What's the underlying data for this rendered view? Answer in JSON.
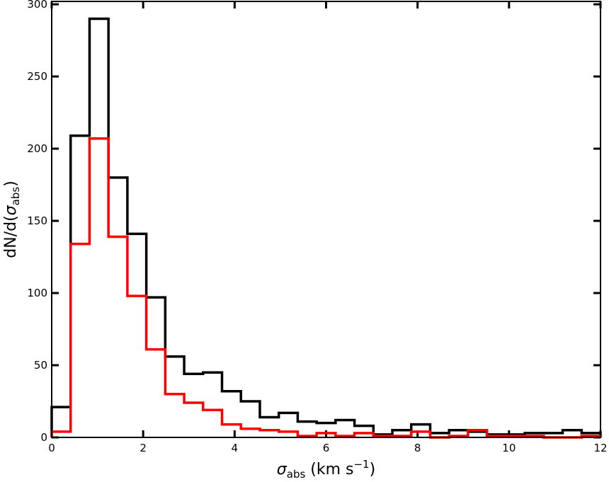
{
  "chart_data": {
    "type": "histogram",
    "bin_edges": [
      0,
      0.4138,
      0.8276,
      1.2414,
      1.6552,
      2.069,
      2.4828,
      2.8966,
      3.3103,
      3.7241,
      4.1379,
      4.5517,
      4.9655,
      5.3793,
      5.7931,
      6.2069,
      6.6207,
      7.0345,
      7.4483,
      7.8621,
      8.2759,
      8.6897,
      9.1034,
      9.5172,
      9.931,
      10.3448,
      10.7586,
      11.1724,
      11.5862,
      12
    ],
    "series": [
      {
        "color": "#000000",
        "values": [
          21,
          209,
          290,
          180,
          141,
          97,
          56,
          44,
          45,
          32,
          25,
          14,
          17,
          11,
          10,
          12,
          8,
          2,
          5,
          9,
          3,
          5,
          4,
          2,
          2,
          3,
          3,
          5,
          3
        ]
      },
      {
        "color": "#ff0000",
        "values": [
          4,
          134,
          207,
          139,
          98,
          61,
          30,
          24,
          19,
          9,
          6,
          5,
          4,
          1,
          3,
          1,
          3,
          1,
          1,
          4,
          0,
          1,
          5,
          1,
          1,
          1,
          0,
          0,
          1
        ]
      }
    ],
    "xlim": [
      0,
      12
    ],
    "ylim": [
      0,
      302
    ],
    "x_ticks": [
      0,
      2,
      4,
      6,
      8,
      10,
      12
    ],
    "y_ticks": [
      0,
      50,
      100,
      150,
      200,
      250,
      300
    ],
    "xlabel": {
      "symbol": "σ",
      "subscript": "abs",
      "text": " (km s",
      "superscript": "−1",
      "close": ")"
    },
    "ylabel": {
      "prefix": "dN/d(",
      "symbol": "σ",
      "subscript": "abs",
      "close": ")"
    },
    "grid": false,
    "legend": "none"
  }
}
